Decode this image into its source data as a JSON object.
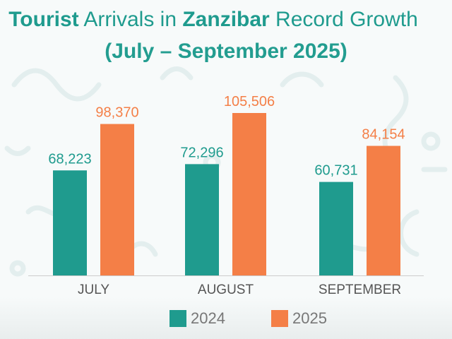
{
  "header": {
    "title_part1": "Tourist",
    "title_part2": " Arrivals in ",
    "title_part3": "Zanzibar",
    "title_part4": " Record Growth",
    "subtitle": "(July – September 2025)"
  },
  "colors": {
    "series_2024": "#1f9b8e",
    "series_2025": "#f47f47",
    "title": "#1f9b8e"
  },
  "chart_data": {
    "type": "bar",
    "title": "Tourist Arrivals in Zanzibar Record Growth",
    "subtitle": "(July – September 2025)",
    "categories": [
      "JULY",
      "AUGUST",
      "SEPTEMBER"
    ],
    "series": [
      {
        "name": "2024",
        "values": [
          68223,
          72296,
          60731
        ],
        "labels": [
          "68,223",
          "72,296",
          "60,731"
        ]
      },
      {
        "name": "2025",
        "values": [
          98370,
          105506,
          84154
        ],
        "labels": [
          "98,370",
          "105,506",
          "84,154"
        ]
      }
    ],
    "ylim": [
      0,
      112000
    ],
    "grid": false,
    "legend_position": "bottom"
  },
  "legend": {
    "items": [
      {
        "label": "2024"
      },
      {
        "label": "2025"
      }
    ]
  }
}
